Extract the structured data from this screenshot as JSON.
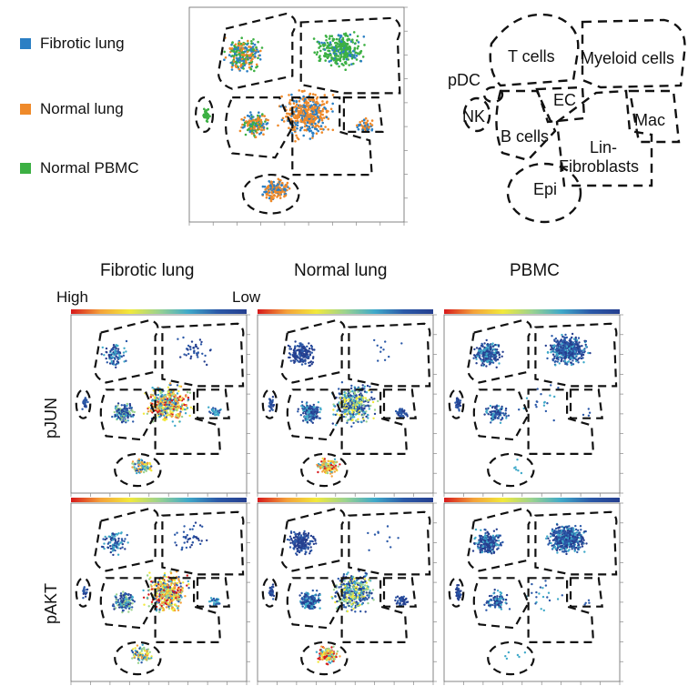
{
  "figure": {
    "legend": {
      "items": [
        {
          "label": "Fibrotic lung",
          "color": "#2b7fc4"
        },
        {
          "label": "Normal lung",
          "color": "#ef8a2a"
        },
        {
          "label": "Normal PBMC",
          "color": "#3cb043"
        }
      ]
    },
    "cluster_map": {
      "labels": [
        "T cells",
        "Myeloid cells",
        "pDC",
        "NK",
        "EC",
        "B cells",
        "Mac",
        "Lin-",
        "Fibroblasts",
        "Epi"
      ]
    },
    "columns": [
      "Fibrotic lung",
      "Normal lung",
      "PBMC"
    ],
    "rows": [
      "pJUN",
      "pAKT"
    ],
    "scale": {
      "high": "High",
      "low": "Low"
    },
    "colorscale": [
      "#d7191c",
      "#f4a13a",
      "#f2e93a",
      "#9bd38f",
      "#3fa9c9",
      "#2b59a8",
      "#253f8f"
    ]
  }
}
